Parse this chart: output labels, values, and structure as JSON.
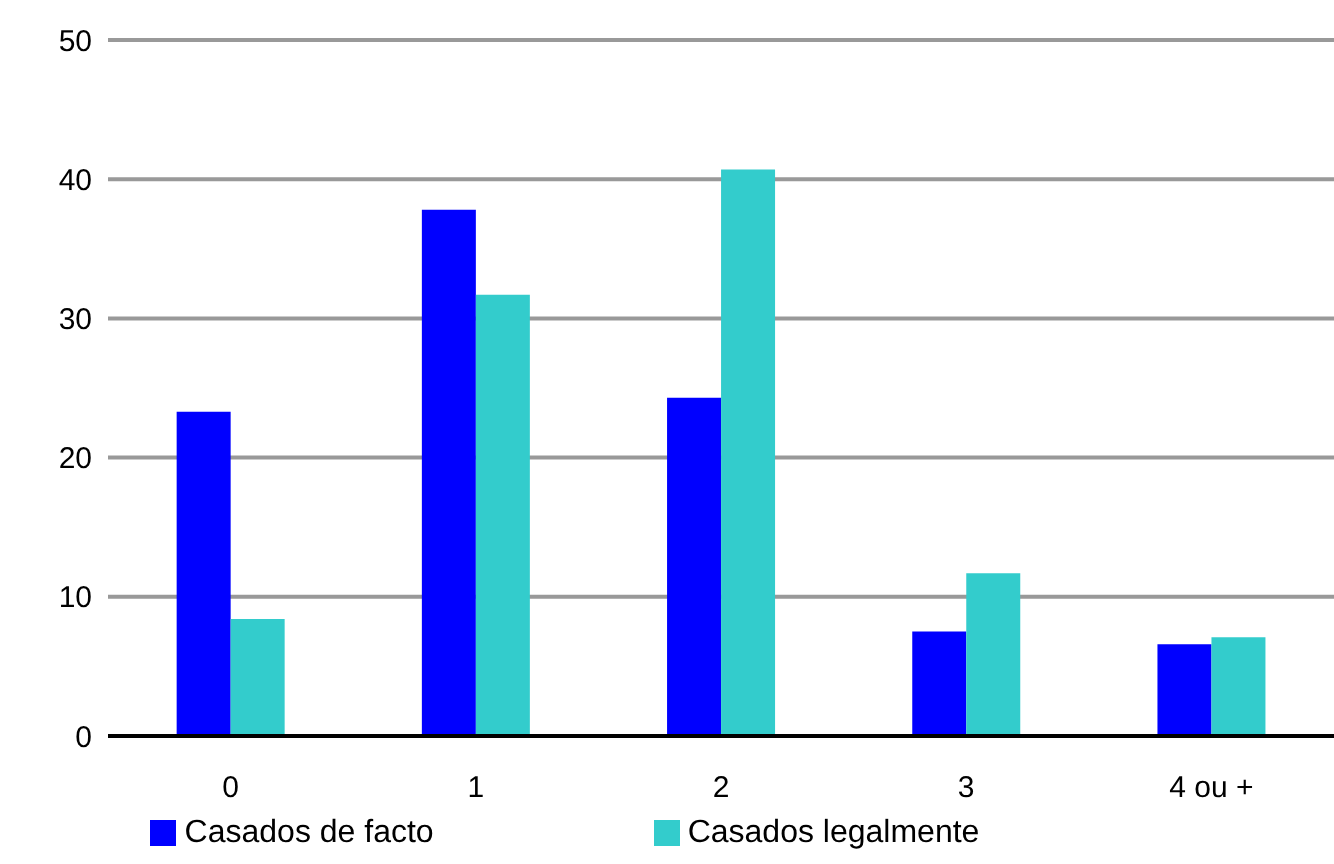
{
  "chart_data": {
    "type": "bar",
    "categories": [
      "0",
      "1",
      "2",
      "3",
      "4 ou +"
    ],
    "series": [
      {
        "name": "Casados de facto",
        "color": "#0000ff",
        "values": [
          23.3,
          37.8,
          24.3,
          7.5,
          6.6
        ]
      },
      {
        "name": "Casados legalmente",
        "color": "#33cccc",
        "values": [
          8.4,
          31.7,
          40.7,
          11.7,
          7.1
        ]
      }
    ],
    "ylim": [
      0,
      50
    ],
    "yticks": [
      0,
      10,
      20,
      30,
      40,
      50
    ],
    "grid": "y",
    "legend": "bottom"
  }
}
